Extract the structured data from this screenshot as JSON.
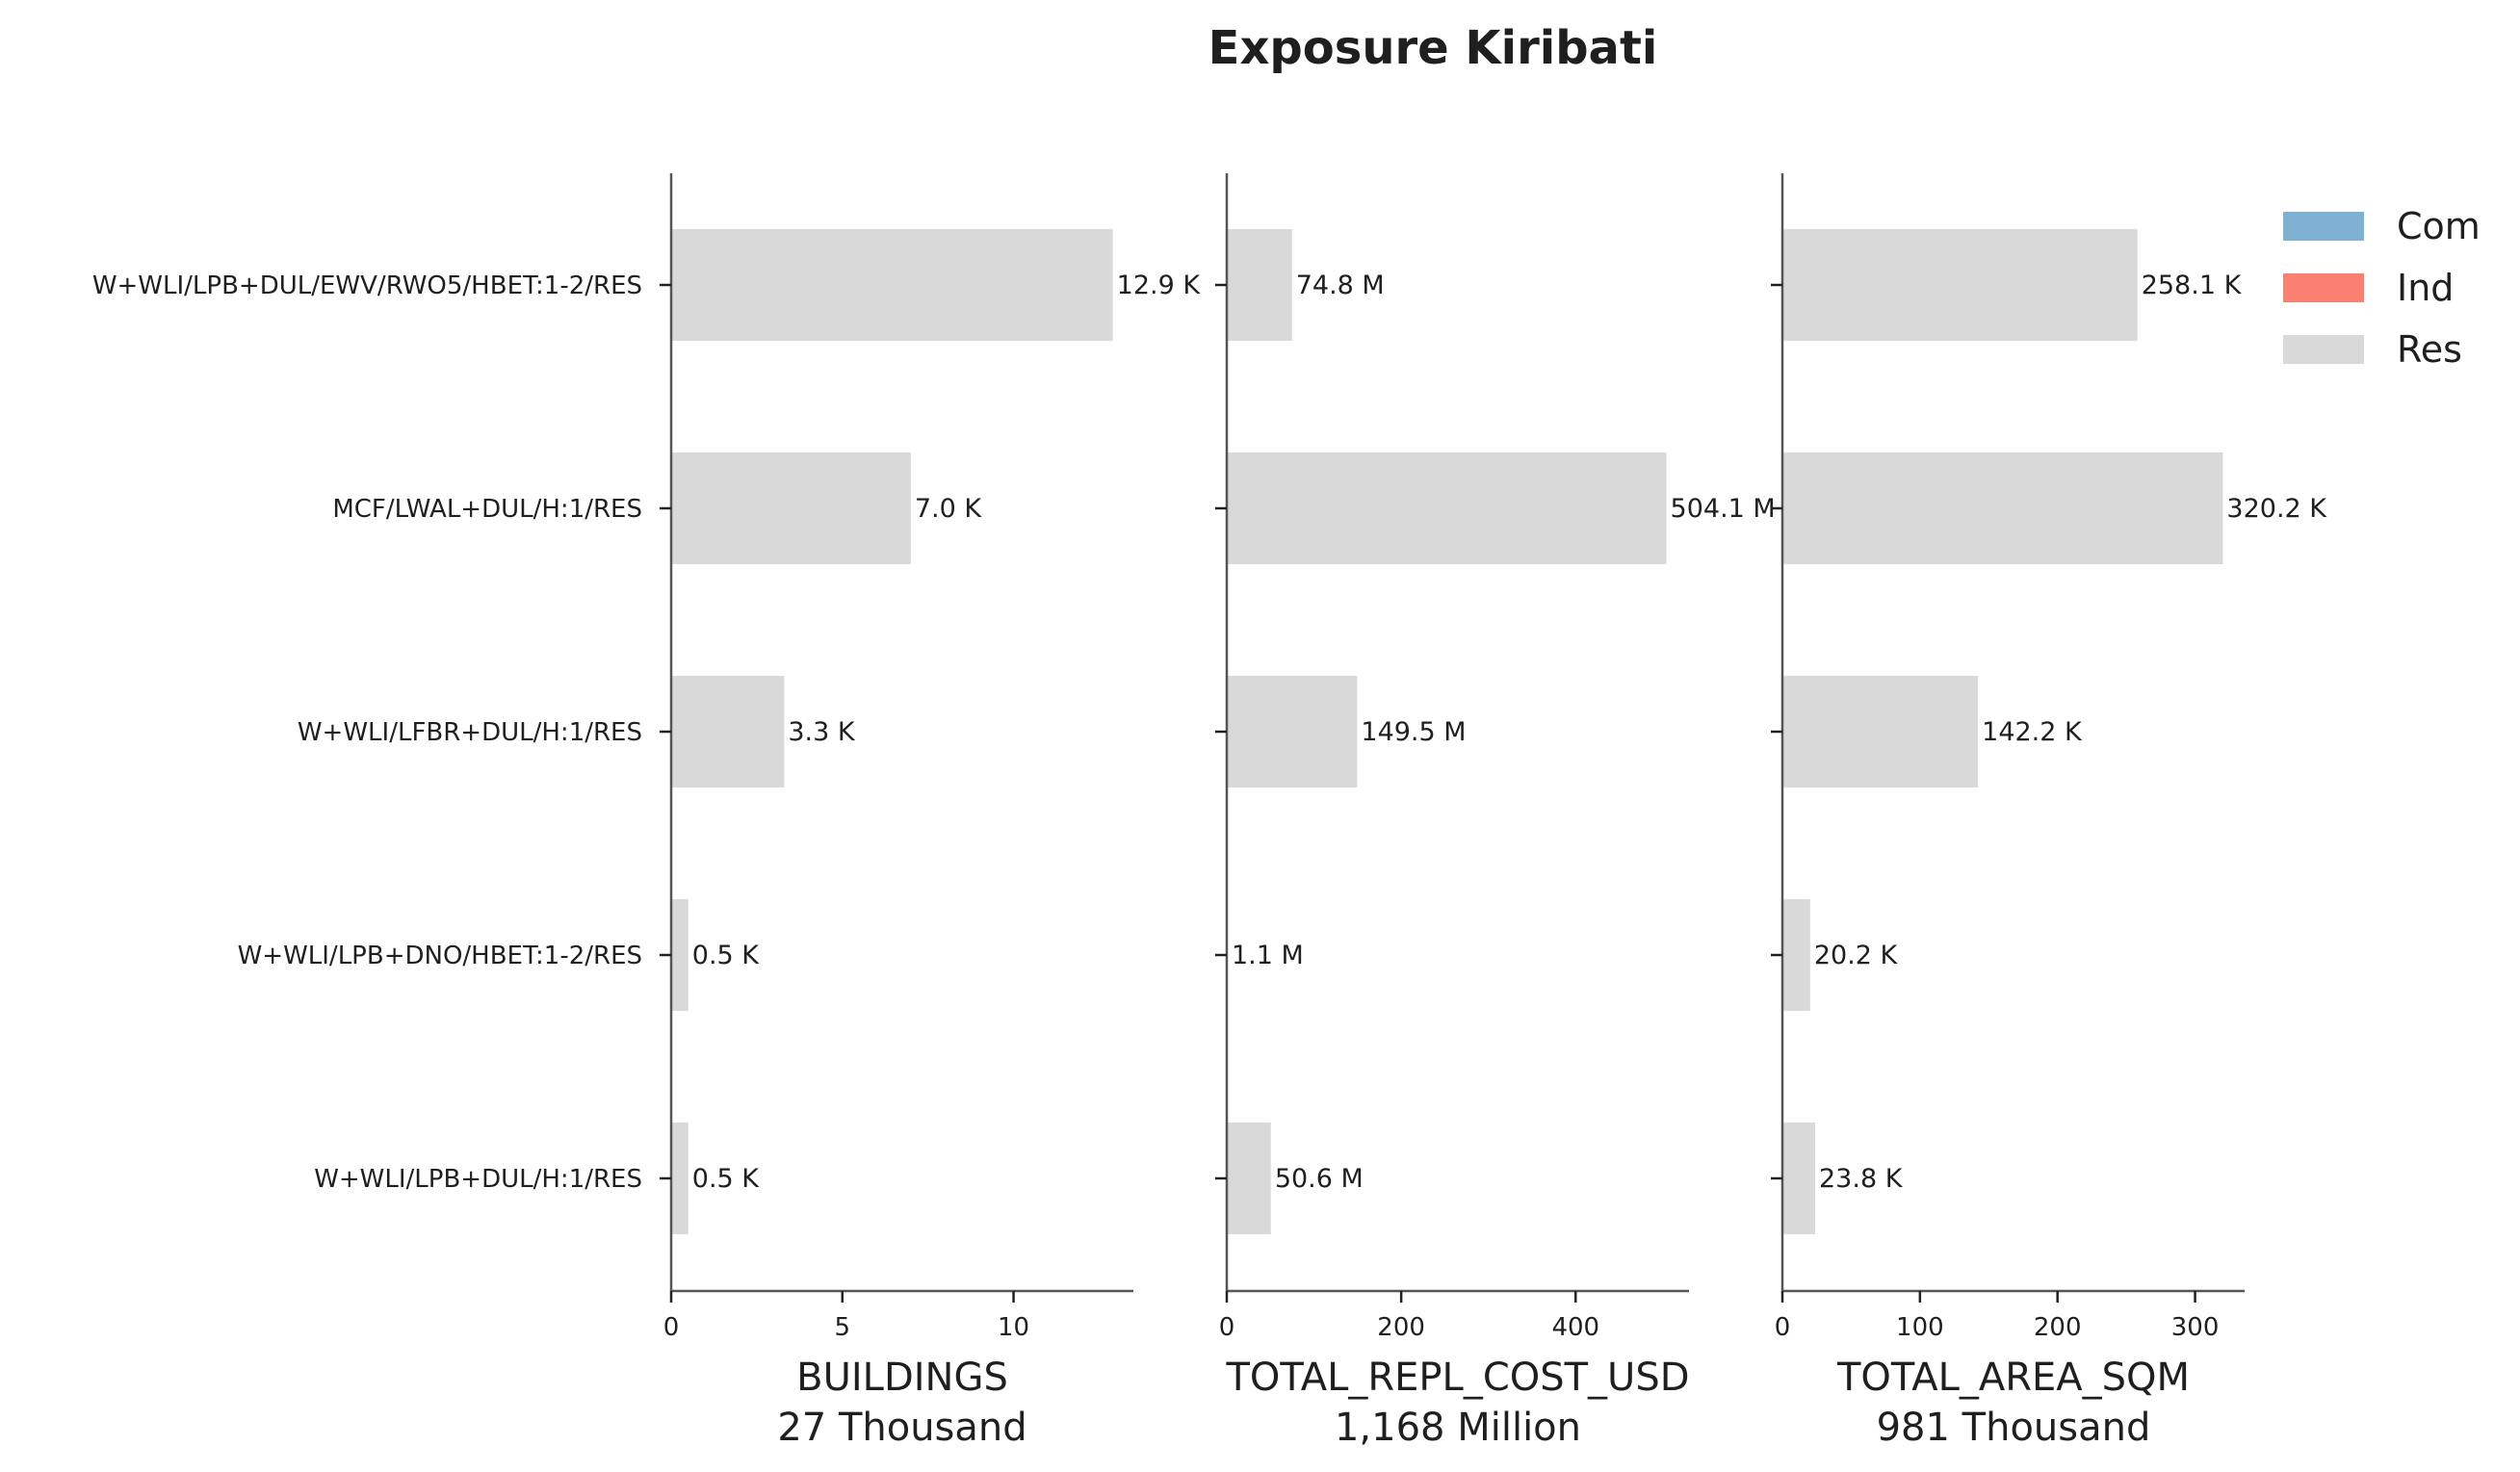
{
  "chart_data": {
    "type": "bar",
    "orientation": "horizontal",
    "stacked": true,
    "title": "Exposure Kiribati",
    "categories": [
      "W+WLI/LPB+DUL/EWV/RWO5/HBET:1-2/RES",
      "MCF/LWAL+DUL/H:1/RES",
      "W+WLI/LFBR+DUL/H:1/RES",
      "W+WLI/LPB+DNO/HBET:1-2/RES",
      "W+WLI/LPB+DUL/H:1/RES"
    ],
    "legend": {
      "placement": "top-right",
      "entries": [
        {
          "name": "Com",
          "color": "#7fb1d3"
        },
        {
          "name": "Ind",
          "color": "#fa8072"
        },
        {
          "name": "Res",
          "color": "#d9d9d9"
        }
      ]
    },
    "panels": [
      {
        "xlabel": "BUILDINGS",
        "total": "27 Thousand",
        "xlim": [
          0,
          13.5
        ],
        "xticks": [
          0,
          5,
          10
        ],
        "series": [
          {
            "name": "Res",
            "values": [
              12.9,
              7.0,
              3.3,
              0.5,
              0.5
            ]
          }
        ],
        "data_labels": [
          "12.9 K",
          "7.0 K",
          "3.3 K",
          "0.5 K",
          "0.5 K"
        ]
      },
      {
        "xlabel": "TOTAL_REPL_COST_USD",
        "total": "1,168 Million",
        "xlim": [
          0,
          530
        ],
        "xticks": [
          0,
          200,
          400
        ],
        "series": [
          {
            "name": "Res",
            "values": [
              74.8,
              504.1,
              149.5,
              1.1,
              50.6
            ]
          }
        ],
        "data_labels": [
          "74.8 M",
          "504.1 M",
          "149.5 M",
          "1.1 M",
          "50.6 M"
        ]
      },
      {
        "xlabel": "TOTAL_AREA_SQM",
        "total": "981 Thousand",
        "xlim": [
          0,
          336
        ],
        "xticks": [
          0,
          100,
          200,
          300
        ],
        "series": [
          {
            "name": "Res",
            "values": [
              258.1,
              320.2,
              142.2,
              20.2,
              23.8
            ]
          }
        ],
        "data_labels": [
          "258.1 K",
          "320.2 K",
          "142.2 K",
          "20.2 K",
          "23.8 K"
        ]
      }
    ]
  }
}
